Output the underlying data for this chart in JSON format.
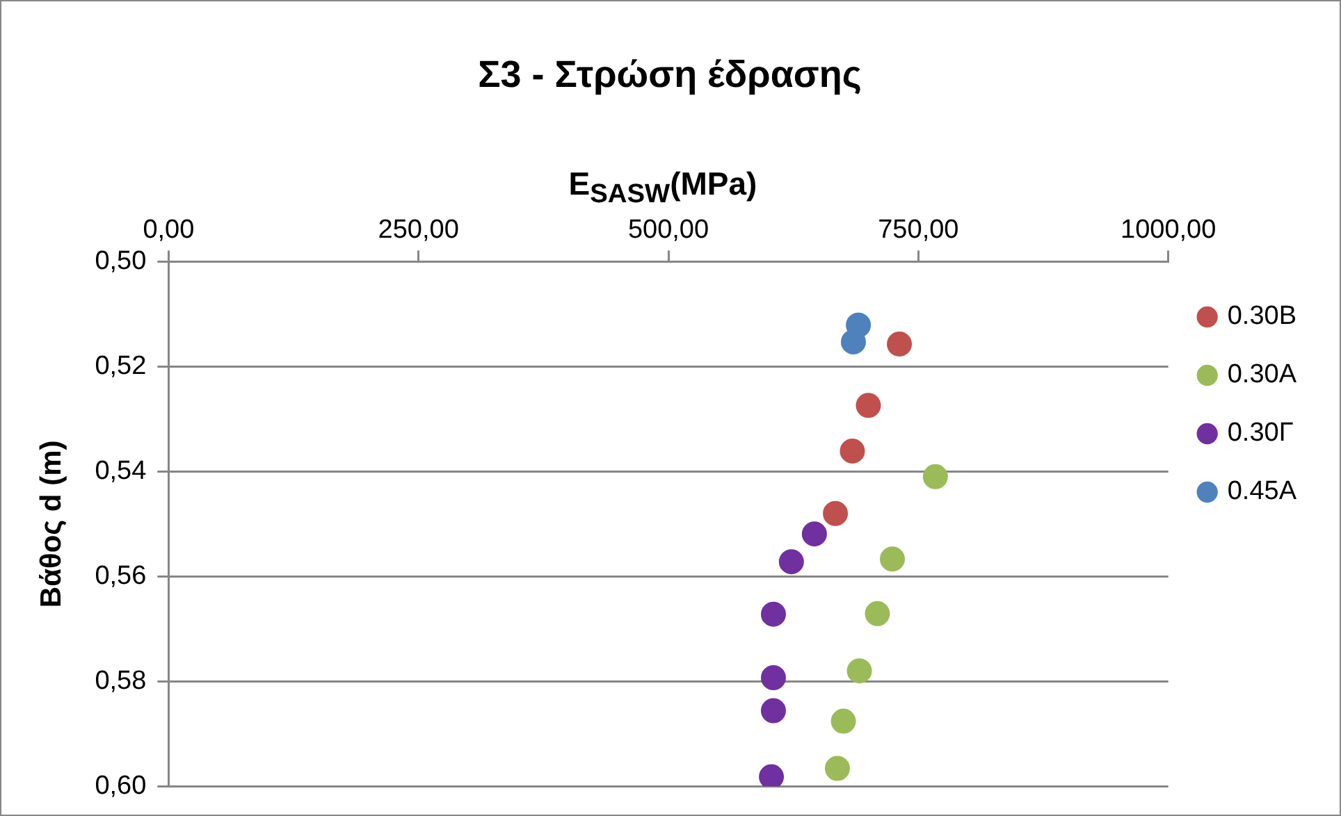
{
  "chart_data": {
    "type": "scatter",
    "title": "Σ3 - Στρώση έδρασης",
    "xlabel": "E$_{SASW}$(MPa)",
    "ylabel": "Βάθος d (m)",
    "xlim": [
      0,
      1000
    ],
    "xticks": [
      {
        "value": 0,
        "label": "0,00"
      },
      {
        "value": 250,
        "label": "250,00"
      },
      {
        "value": 500,
        "label": "500,00"
      },
      {
        "value": 750,
        "label": "750,00"
      },
      {
        "value": 1000,
        "label": "1000,00"
      }
    ],
    "ylim": [
      0.6,
      0.5
    ],
    "yticks": [
      {
        "value": 0.5,
        "label": "0,50"
      },
      {
        "value": 0.52,
        "label": "0,52"
      },
      {
        "value": 0.54,
        "label": "0,54"
      },
      {
        "value": 0.56,
        "label": "0,56"
      },
      {
        "value": 0.58,
        "label": "0,58"
      },
      {
        "value": 0.6,
        "label": "0,60"
      }
    ],
    "grid": "y",
    "legend": "right",
    "marker": "circle",
    "series": [
      {
        "name": "0.30Β",
        "color": "#c0504d",
        "x": [
          731,
          700,
          684,
          667
        ],
        "values": [
          0.5157,
          0.5274,
          0.5361,
          0.548
        ]
      },
      {
        "name": "0.30Α",
        "color": "#9bbb59",
        "x": [
          767,
          724,
          709,
          691,
          675,
          669
        ],
        "values": [
          0.541,
          0.5567,
          0.5671,
          0.578,
          0.5876,
          0.5966
        ]
      },
      {
        "name": "0.30Γ",
        "color": "#7030a0",
        "x": [
          646,
          623,
          605,
          605,
          605,
          603
        ],
        "values": [
          0.5519,
          0.5572,
          0.5672,
          0.5793,
          0.5856,
          0.5982
        ]
      },
      {
        "name": "0.45Α",
        "color": "#4f81bd",
        "x": [
          690,
          685
        ],
        "values": [
          0.5121,
          0.5153
        ]
      }
    ]
  }
}
